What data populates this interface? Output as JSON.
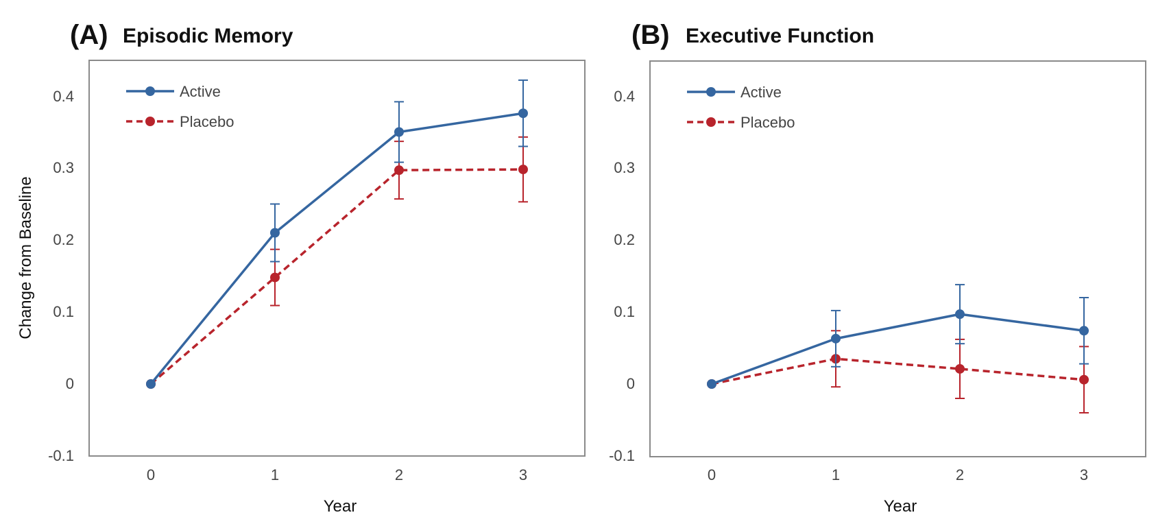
{
  "colors": {
    "active": "#3566a0",
    "placebo": "#b8242c",
    "frame": "#8a8a8a"
  },
  "chart_data": [
    {
      "type": "line",
      "panel_label": "(A)",
      "title": "Episodic Memory",
      "xlabel": "Year",
      "ylabel": "Change from Baseline",
      "x": [
        0,
        1,
        2,
        3
      ],
      "x_tick_labels": [
        "0",
        "1",
        "2",
        "3"
      ],
      "y_tick_labels": [
        "-0.1",
        "0",
        "0.1",
        "0.2",
        "0.3",
        "0.4"
      ],
      "xlim": [
        -0.5,
        3.5
      ],
      "ylim": [
        -0.1,
        0.45
      ],
      "grid": false,
      "legend_position": "top-left",
      "series": [
        {
          "name": "Active",
          "color": "#3566a0",
          "line_style": "solid",
          "values": [
            0.0,
            0.21,
            0.35,
            0.376
          ],
          "error": [
            0.0,
            0.04,
            0.042,
            0.046
          ]
        },
        {
          "name": "Placebo",
          "color": "#b8242c",
          "line_style": "dashed",
          "values": [
            0.0,
            0.148,
            0.297,
            0.298
          ],
          "error": [
            0.0,
            0.039,
            0.04,
            0.045
          ]
        }
      ]
    },
    {
      "type": "line",
      "panel_label": "(B)",
      "title": "Executive Function",
      "xlabel": "Year",
      "ylabel": "",
      "x": [
        0,
        1,
        2,
        3
      ],
      "x_tick_labels": [
        "0",
        "1",
        "2",
        "3"
      ],
      "y_tick_labels": [
        "-0.1",
        "0",
        "0.1",
        "0.2",
        "0.3",
        "0.4"
      ],
      "xlim": [
        -0.5,
        3.5
      ],
      "ylim": [
        -0.1,
        0.45
      ],
      "grid": false,
      "legend_position": "top-left",
      "series": [
        {
          "name": "Active",
          "color": "#3566a0",
          "line_style": "solid",
          "values": [
            0.0,
            0.063,
            0.097,
            0.074
          ],
          "error": [
            0.0,
            0.039,
            0.041,
            0.046
          ]
        },
        {
          "name": "Placebo",
          "color": "#b8242c",
          "line_style": "dashed",
          "values": [
            0.0,
            0.035,
            0.021,
            0.006
          ],
          "error": [
            0.0,
            0.039,
            0.041,
            0.046
          ]
        }
      ]
    }
  ]
}
